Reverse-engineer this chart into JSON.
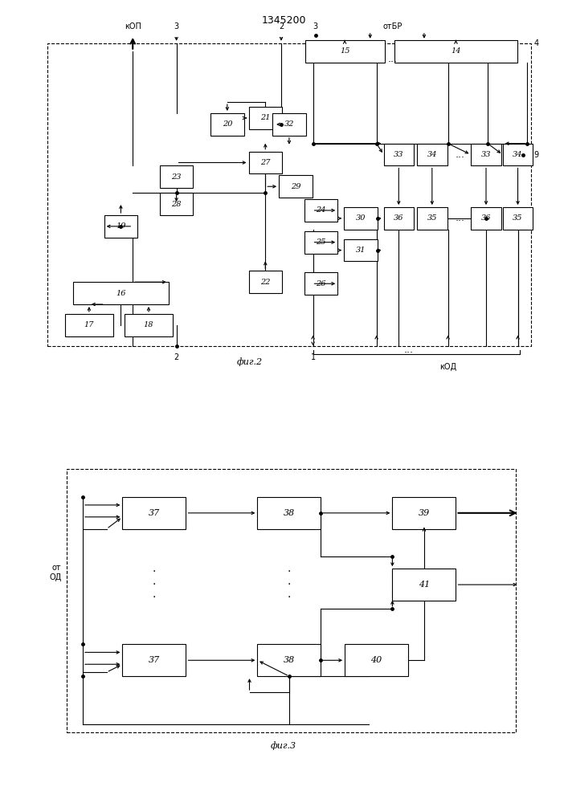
{
  "title": "1345200",
  "fig1_label": "фиг.2",
  "fig2_label": "фиг.3",
  "bg_color": "#ffffff",
  "box_color": "#ffffff",
  "line_color": "#000000"
}
